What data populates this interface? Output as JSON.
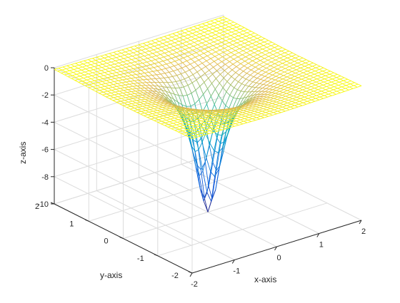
{
  "chart_data": {
    "type": "surface",
    "style": "mesh",
    "title": "",
    "xlabel": "x-axis",
    "ylabel": "y-axis",
    "zlabel": "z-axis",
    "xlim": [
      -2,
      2
    ],
    "ylim": [
      -2,
      2
    ],
    "zlim": [
      -10,
      0
    ],
    "x_ticks": [
      "-2",
      "-1",
      "0",
      "1",
      "2"
    ],
    "y_ticks": [
      "-2",
      "-1",
      "0",
      "1",
      "2"
    ],
    "z_ticks": [
      "0",
      "-2",
      "-4",
      "-6",
      "-8",
      "-10"
    ],
    "x_tick_values": [
      -2,
      -1,
      0,
      1,
      2
    ],
    "y_tick_values": [
      -2,
      -1,
      0,
      1,
      2
    ],
    "z_tick_values": [
      0,
      -2,
      -4,
      -6,
      -8,
      -10
    ],
    "grid": true,
    "box": false,
    "colormap": "parula",
    "mesh_resolution": [
      41,
      41
    ],
    "surface_function": "z = -1 / (x^2 + y^2 + 0.1)",
    "z_at_origin": -10,
    "colors": {
      "axis": "#262626",
      "grid": "#dcdcdc",
      "surface_high": "#f9fb0e",
      "surface_low": "#0b84b8"
    }
  }
}
